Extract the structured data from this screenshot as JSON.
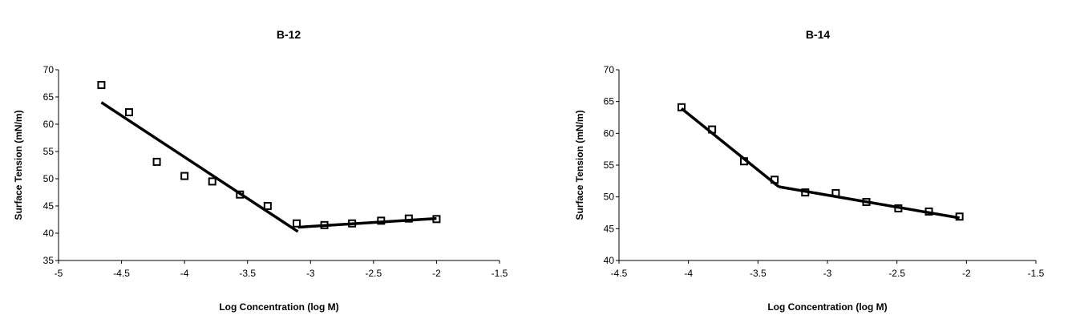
{
  "chart_data": [
    {
      "type": "scatter",
      "title": "B-12",
      "xlabel": "Log Concentration (log M)",
      "ylabel": "Surface Tension (mN/m)",
      "xlim": [
        -5,
        -1.5
      ],
      "ylim": [
        35,
        70
      ],
      "xticks": [
        "-5",
        "-4.5",
        "-4",
        "-3.5",
        "-3",
        "-2.5",
        "-2",
        "-1.5"
      ],
      "yticks": [
        "35",
        "40",
        "45",
        "50",
        "55",
        "60",
        "65",
        "70"
      ],
      "grid": false,
      "legend": "none",
      "marker": "open-square",
      "points": {
        "x": [
          -4.66,
          -4.44,
          -4.22,
          -4.0,
          -3.78,
          -3.56,
          -3.34,
          -3.11,
          -2.89,
          -2.67,
          -2.44,
          -2.22,
          -2.0
        ],
        "y": [
          67.2,
          62.2,
          53.1,
          50.5,
          49.5,
          47.1,
          45.0,
          41.8,
          41.5,
          41.8,
          42.3,
          42.7,
          42.6
        ]
      },
      "fit_lines": [
        {
          "x": [
            -4.66,
            -3.1
          ],
          "y": [
            64.0,
            40.3
          ]
        },
        {
          "x": [
            -3.1,
            -2.0
          ],
          "y": [
            41.1,
            42.7
          ]
        }
      ]
    },
    {
      "type": "scatter",
      "title": "B-14",
      "xlabel": "Log Concentration (log M)",
      "ylabel": "Surface Tension (mN/m)",
      "xlim": [
        -4.5,
        -1.5
      ],
      "ylim": [
        40,
        70
      ],
      "xticks": [
        "-4.5",
        "-4",
        "-3.5",
        "-3",
        "-2.5",
        "-2",
        "-1.5"
      ],
      "yticks": [
        "40",
        "45",
        "50",
        "55",
        "60",
        "65",
        "70"
      ],
      "grid": false,
      "legend": "none",
      "marker": "open-square",
      "points": {
        "x": [
          -4.05,
          -3.83,
          -3.6,
          -3.38,
          -3.16,
          -2.94,
          -2.72,
          -2.49,
          -2.27,
          -2.05
        ],
        "y": [
          64.1,
          60.6,
          55.6,
          52.7,
          50.7,
          50.6,
          49.2,
          48.2,
          47.7,
          46.9
        ]
      },
      "fit_lines": [
        {
          "x": [
            -4.05,
            -3.35
          ],
          "y": [
            63.9,
            51.6
          ]
        },
        {
          "x": [
            -3.35,
            -2.05
          ],
          "y": [
            51.6,
            46.7
          ]
        }
      ]
    }
  ]
}
